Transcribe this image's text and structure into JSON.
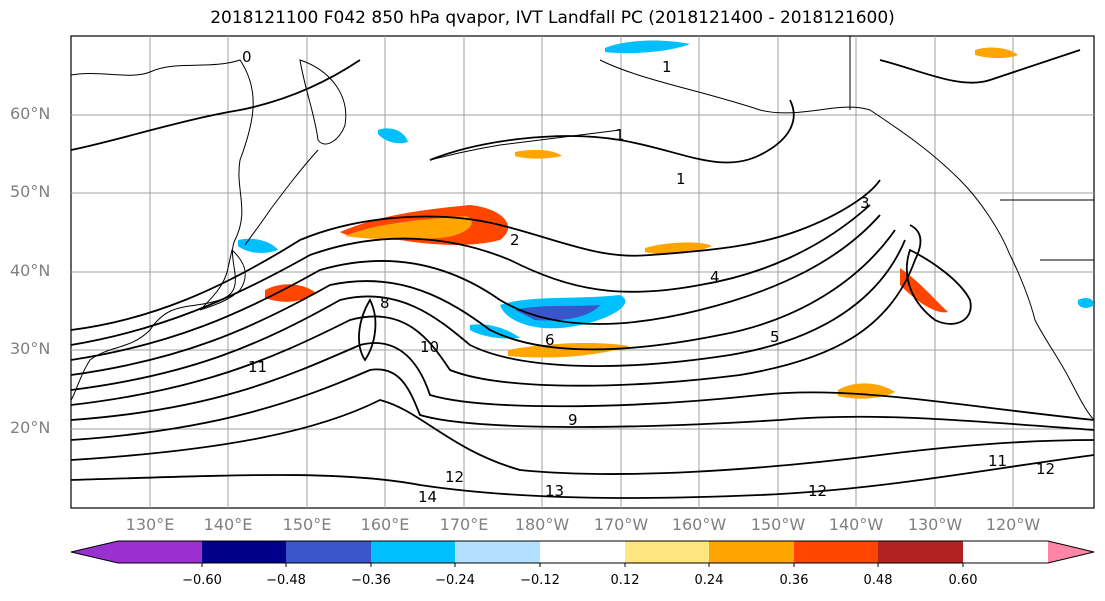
{
  "title": "2018121100 F042 850 hPa qvapor, IVT Landfall PC (2018121400 - 2018121600)",
  "lat_labels": [
    "60°N",
    "50°N",
    "40°N",
    "30°N",
    "20°N"
  ],
  "lon_labels": [
    "130°E",
    "140°E",
    "150°E",
    "160°E",
    "170°E",
    "180°W",
    "170°W",
    "160°W",
    "150°W",
    "140°W",
    "130°W",
    "120°W"
  ],
  "contour_labels": [
    "0",
    "1",
    "1",
    "1",
    "2",
    "3",
    "4",
    "5",
    "6",
    "8",
    "9",
    "10",
    "11",
    "12",
    "14",
    "13",
    "12",
    "11",
    "12"
  ],
  "colorbar": {
    "colors": [
      "#9b30d0",
      "#00008b",
      "#3a55c9",
      "#00bfff",
      "#b3e0ff",
      "#ffffff",
      "#ffe680",
      "#ffa500",
      "#ff4500",
      "#b22222",
      "#ff85a8"
    ],
    "tick_labels": [
      "−0.60",
      "−0.48",
      "−0.36",
      "−0.24",
      "−0.12",
      "0.12",
      "0.24",
      "0.36",
      "0.48",
      "0.60"
    ]
  },
  "colors": {
    "grid": "#a0a0a0",
    "contour": "#000000",
    "coast": "#000000",
    "label_gray": "#808080"
  }
}
